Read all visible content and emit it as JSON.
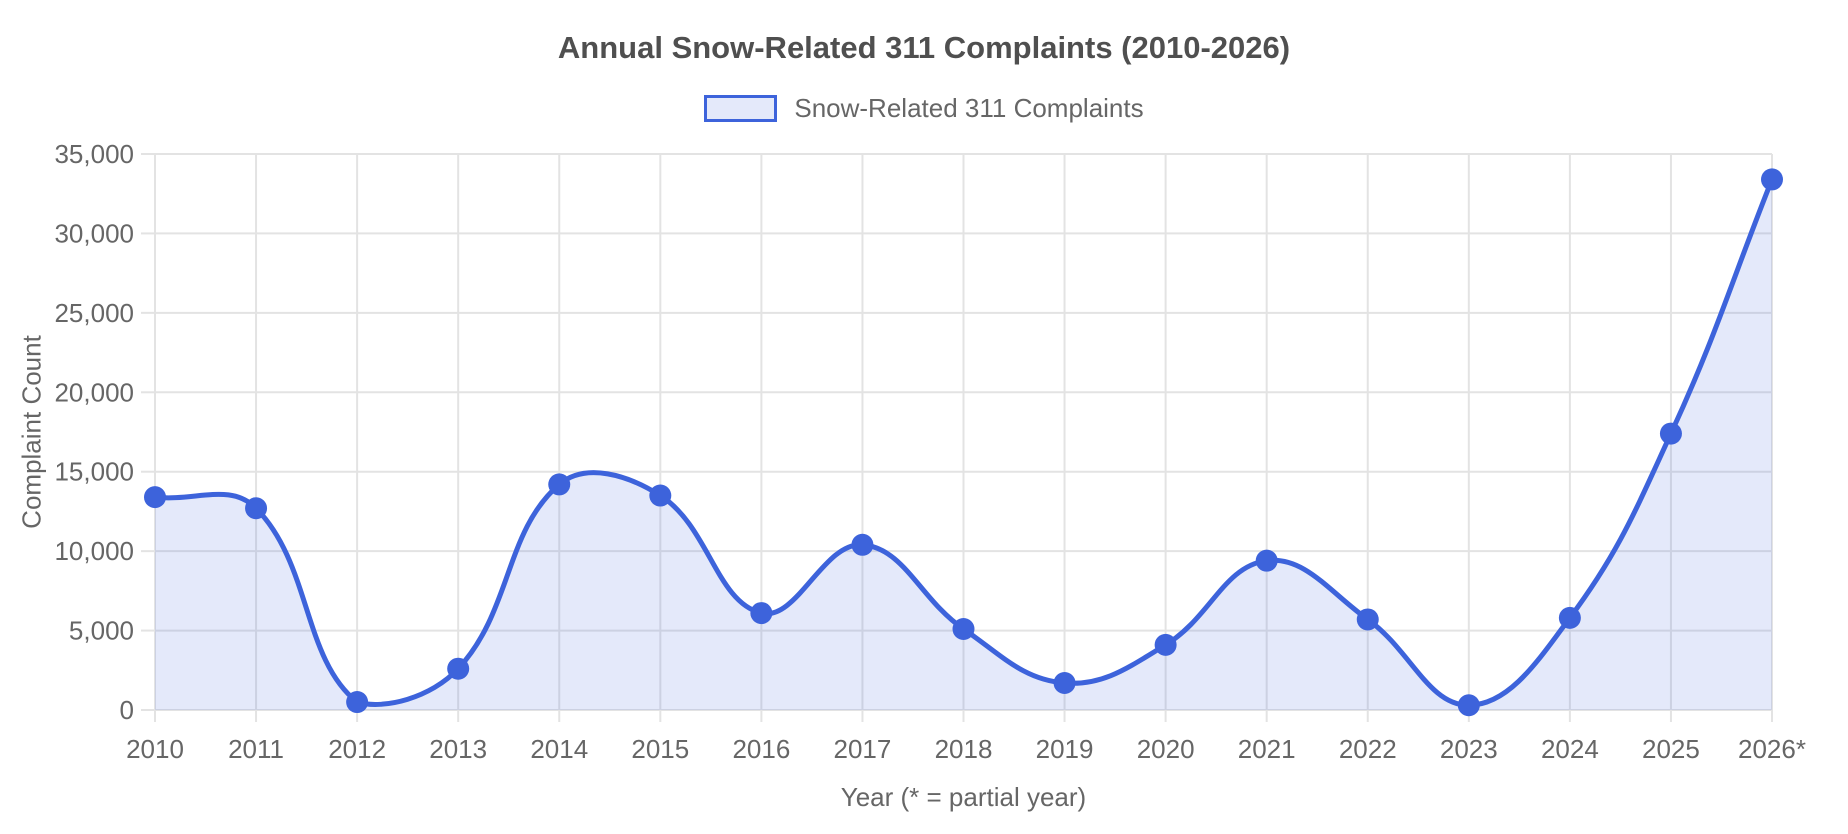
{
  "chart_data": {
    "type": "area",
    "title": "Annual Snow-Related 311 Complaints (2010-2026)",
    "legend_label": "Snow-Related 311 Complaints",
    "xlabel": "Year (* = partial year)",
    "ylabel": "Complaint Count",
    "categories": [
      "2010",
      "2011",
      "2012",
      "2013",
      "2014",
      "2015",
      "2016",
      "2017",
      "2018",
      "2019",
      "2020",
      "2021",
      "2022",
      "2023",
      "2024",
      "2025",
      "2026*"
    ],
    "values": [
      13400,
      12700,
      500,
      2600,
      14200,
      13500,
      6100,
      10400,
      5100,
      1700,
      4100,
      9400,
      5700,
      300,
      5800,
      17400,
      33400
    ],
    "ylim": [
      0,
      35000
    ],
    "y_ticks": [
      0,
      5000,
      10000,
      15000,
      20000,
      25000,
      30000,
      35000
    ],
    "y_tick_labels": [
      "0",
      "5,000",
      "10,000",
      "15,000",
      "20,000",
      "25,000",
      "30,000",
      "35,000"
    ],
    "grid": true,
    "smooth": true,
    "curve_tension": 0.4,
    "legend_position": "top",
    "marker_radius": 11,
    "line_width": 5,
    "colors": {
      "line": "#3D63DB",
      "point": "#3D63DB",
      "area_base": "#3D63DB",
      "area_opacity": 0.14,
      "grid": "#E3E3E3",
      "tick_text": "#666666",
      "title_text": "#4F4F4F"
    }
  }
}
